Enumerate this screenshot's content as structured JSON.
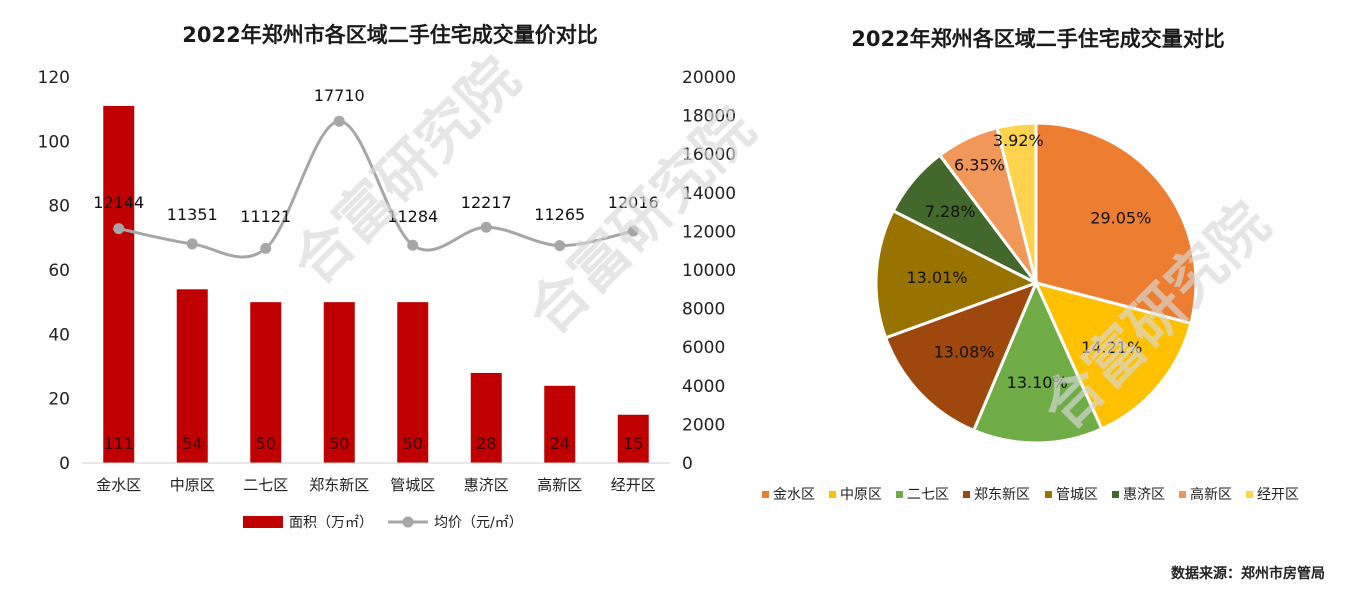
{
  "chart_data": [
    {
      "type": "bar+line",
      "title": "2022年郑州市各区域二手住宅成交量价对比",
      "categories": [
        "金水区",
        "中原区",
        "二七区",
        "郑东新区",
        "管城区",
        "惠济区",
        "高新区",
        "经开区"
      ],
      "series": [
        {
          "name": "面积（万㎡）",
          "type": "bar",
          "axis": "left",
          "color": "#c00000",
          "values": [
            111,
            54,
            50,
            50,
            50,
            28,
            24,
            15
          ]
        },
        {
          "name": "均价（元/㎡）",
          "type": "line",
          "axis": "right",
          "color": "#a6a6a6",
          "values": [
            12144,
            11351,
            11121,
            17710,
            11284,
            12217,
            11265,
            12016
          ]
        }
      ],
      "y_left": {
        "min": 0,
        "max": 120,
        "ticks": [
          0,
          20,
          40,
          60,
          80,
          100,
          120
        ]
      },
      "y_right": {
        "min": 0,
        "max": 20000,
        "ticks": [
          0,
          2000,
          4000,
          6000,
          8000,
          10000,
          12000,
          14000,
          16000,
          18000,
          20000
        ]
      },
      "legend_position": "bottom"
    },
    {
      "type": "pie",
      "title": "2022年郑州各区域二手住宅成交量对比",
      "labels": [
        "金水区",
        "中原区",
        "二七区",
        "郑东新区",
        "管城区",
        "惠济区",
        "高新区",
        "经开区"
      ],
      "values": [
        29.05,
        14.21,
        13.1,
        13.08,
        13.01,
        7.28,
        6.35,
        3.92
      ],
      "value_labels": [
        "29.05%",
        "14.21%",
        "13.10%",
        "13.08%",
        "13.01%",
        "7.28%",
        "6.35%",
        "3.92%"
      ],
      "colors": [
        "#ed7d31",
        "#ffc000",
        "#70ad47",
        "#9e480e",
        "#997300",
        "#43682b",
        "#f1975a",
        "#ffd34d"
      ],
      "legend_position": "bottom"
    }
  ],
  "watermark": "合富研究院",
  "source_note": "数据来源：郑州市房管局"
}
